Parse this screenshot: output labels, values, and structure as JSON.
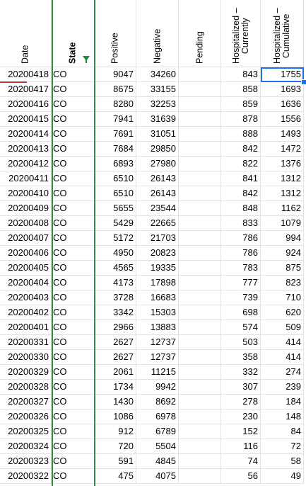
{
  "sheet": {
    "headers": [
      "Date",
      "State",
      "Positive",
      "Negative",
      "Pending",
      "Hospitalized –\nCurrently",
      "Hospitalized –\nCumulative"
    ],
    "rows": [
      [
        "20200418",
        "CO",
        "9047",
        "34260",
        "",
        "843",
        "1755"
      ],
      [
        "20200417",
        "CO",
        "8675",
        "33155",
        "",
        "858",
        "1693"
      ],
      [
        "20200416",
        "CO",
        "8280",
        "32253",
        "",
        "859",
        "1636"
      ],
      [
        "20200415",
        "CO",
        "7941",
        "31639",
        "",
        "878",
        "1556"
      ],
      [
        "20200414",
        "CO",
        "7691",
        "31051",
        "",
        "888",
        "1493"
      ],
      [
        "20200413",
        "CO",
        "7684",
        "29850",
        "",
        "842",
        "1472"
      ],
      [
        "20200412",
        "CO",
        "6893",
        "27980",
        "",
        "822",
        "1376"
      ],
      [
        "20200411",
        "CO",
        "6510",
        "26143",
        "",
        "841",
        "1312"
      ],
      [
        "20200410",
        "CO",
        "6510",
        "26143",
        "",
        "842",
        "1312"
      ],
      [
        "20200409",
        "CO",
        "5655",
        "23544",
        "",
        "848",
        "1162"
      ],
      [
        "20200408",
        "CO",
        "5429",
        "22665",
        "",
        "833",
        "1079"
      ],
      [
        "20200407",
        "CO",
        "5172",
        "21703",
        "",
        "786",
        "994"
      ],
      [
        "20200406",
        "CO",
        "4950",
        "20823",
        "",
        "786",
        "924"
      ],
      [
        "20200405",
        "CO",
        "4565",
        "19335",
        "",
        "783",
        "875"
      ],
      [
        "20200404",
        "CO",
        "4173",
        "17898",
        "",
        "777",
        "823"
      ],
      [
        "20200403",
        "CO",
        "3728",
        "16683",
        "",
        "739",
        "710"
      ],
      [
        "20200402",
        "CO",
        "3342",
        "15303",
        "",
        "698",
        "620"
      ],
      [
        "20200401",
        "CO",
        "2966",
        "13883",
        "",
        "574",
        "509"
      ],
      [
        "20200331",
        "CO",
        "2627",
        "12737",
        "",
        "503",
        "414"
      ],
      [
        "20200330",
        "CO",
        "2627",
        "12737",
        "",
        "358",
        "414"
      ],
      [
        "20200329",
        "CO",
        "2061",
        "11215",
        "",
        "332",
        "274"
      ],
      [
        "20200328",
        "CO",
        "1734",
        "9942",
        "",
        "307",
        "239"
      ],
      [
        "20200327",
        "CO",
        "1430",
        "8692",
        "",
        "278",
        "184"
      ],
      [
        "20200326",
        "CO",
        "1086",
        "6978",
        "",
        "230",
        "148"
      ],
      [
        "20200325",
        "CO",
        "912",
        "6789",
        "",
        "152",
        "84"
      ],
      [
        "20200324",
        "CO",
        "720",
        "5504",
        "",
        "116",
        "72"
      ],
      [
        "20200323",
        "CO",
        "591",
        "4845",
        "",
        "74",
        "58"
      ],
      [
        "20200322",
        "CO",
        "475",
        "4075",
        "",
        "56",
        "49"
      ]
    ],
    "filter_icon": "filter-icon",
    "colors": {
      "grid": "#e2e2e2",
      "selection": "#1a73e8",
      "filter": "#1f8a3d",
      "frozen_line": "#2f8f3a"
    }
  }
}
